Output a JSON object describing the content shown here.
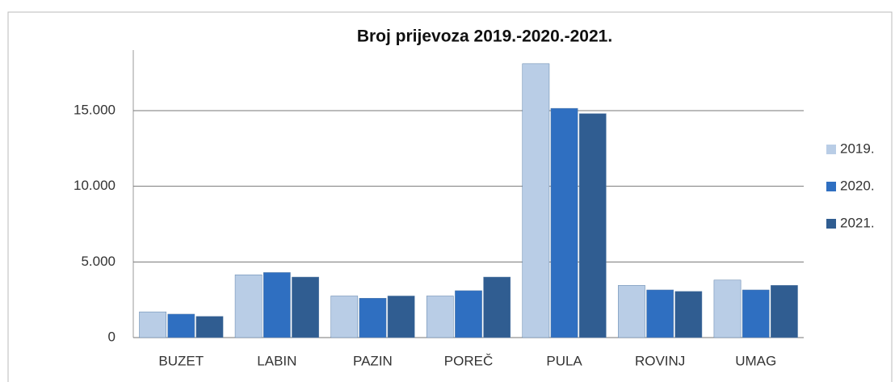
{
  "chart_data": {
    "type": "bar",
    "title": "Broj prijevoza 2019.-2020.-2021.",
    "categories": [
      "BUZET",
      "LABIN",
      "PAZIN",
      "POREČ",
      "PULA",
      "ROVINJ",
      "UMAG"
    ],
    "series": [
      {
        "name": "2019.",
        "color": "#b9cde6",
        "values": [
          1700,
          4150,
          2750,
          2750,
          18100,
          3450,
          3800
        ]
      },
      {
        "name": "2020.",
        "color": "#2f6fc1",
        "values": [
          1550,
          4300,
          2600,
          3100,
          15150,
          3150,
          3150
        ]
      },
      {
        "name": "2021.",
        "color": "#305d91",
        "values": [
          1400,
          4000,
          2750,
          4000,
          14800,
          3050,
          3450
        ]
      }
    ],
    "ylim": [
      0,
      19000
    ],
    "yticks": [
      0,
      {
        "value": 5000,
        "label": "5.000"
      },
      {
        "value": 10000,
        "label": "10.000"
      },
      {
        "value": 15000,
        "label": "15.000"
      }
    ],
    "grid": true,
    "legend": "right"
  }
}
